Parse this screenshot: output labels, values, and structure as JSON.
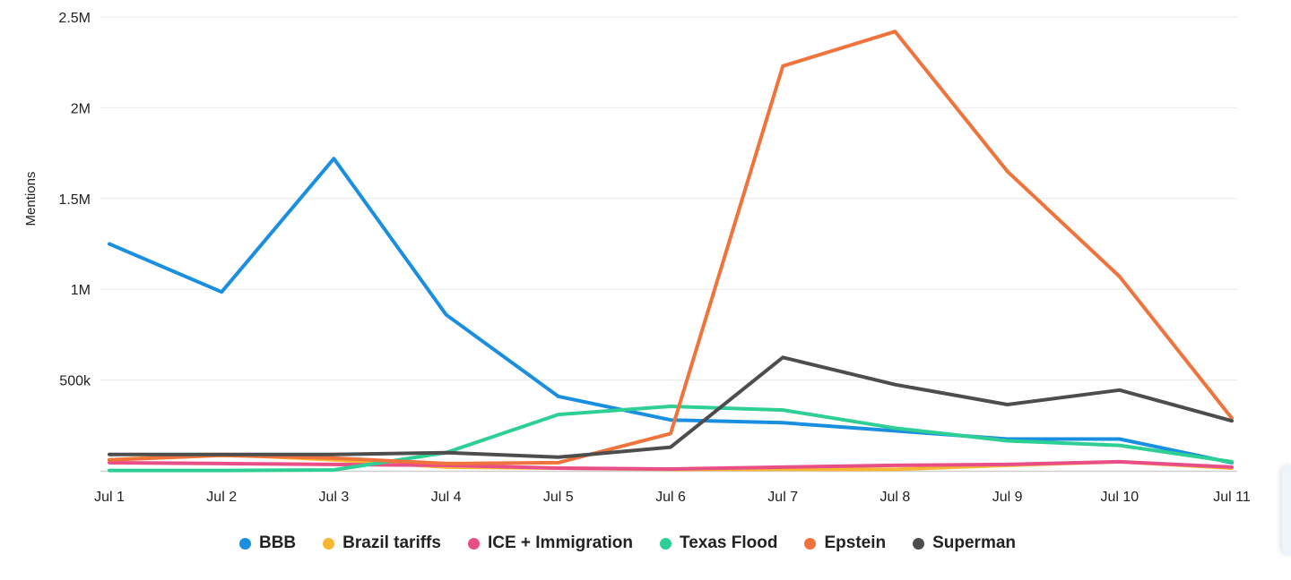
{
  "chart_data": {
    "type": "line",
    "ylabel": "Mentions",
    "xlabel": "",
    "categories": [
      "Jul 1",
      "Jul 2",
      "Jul 3",
      "Jul 4",
      "Jul 5",
      "Jul 6",
      "Jul 7",
      "Jul 8",
      "Jul 9",
      "Jul 10",
      "Jul 11"
    ],
    "ylim": [
      0,
      2500000
    ],
    "y_ticks": [
      {
        "value": 500000,
        "label": "500k"
      },
      {
        "value": 1000000,
        "label": "1M"
      },
      {
        "value": 1500000,
        "label": "1.5M"
      },
      {
        "value": 2000000,
        "label": "2M"
      },
      {
        "value": 2500000,
        "label": "2.5M"
      }
    ],
    "grid": true,
    "legend_position": "bottom",
    "series": [
      {
        "name": "BBB",
        "color": "#1a8fe0",
        "values": [
          1250000,
          985000,
          1720000,
          860000,
          410000,
          280000,
          265000,
          220000,
          175000,
          175000,
          45000
        ]
      },
      {
        "name": "Brazil tariffs",
        "color": "#f7b733",
        "values": [
          60000,
          90000,
          60000,
          20000,
          15000,
          8000,
          8000,
          8000,
          30000,
          50000,
          15000
        ]
      },
      {
        "name": "ICE + Immigration",
        "color": "#e84f86",
        "values": [
          45000,
          40000,
          35000,
          30000,
          15000,
          10000,
          20000,
          30000,
          35000,
          50000,
          20000
        ]
      },
      {
        "name": "Texas Flood",
        "color": "#2ecf94",
        "values": [
          2000,
          2000,
          5000,
          100000,
          310000,
          355000,
          335000,
          235000,
          165000,
          140000,
          50000
        ]
      },
      {
        "name": "Epstein",
        "color": "#f0733b",
        "values": [
          60000,
          85000,
          70000,
          40000,
          45000,
          205000,
          2230000,
          2420000,
          1650000,
          1070000,
          290000
        ]
      },
      {
        "name": "Superman",
        "color": "#4d4d4d",
        "values": [
          90000,
          90000,
          90000,
          100000,
          75000,
          130000,
          625000,
          475000,
          365000,
          445000,
          275000
        ]
      }
    ]
  }
}
